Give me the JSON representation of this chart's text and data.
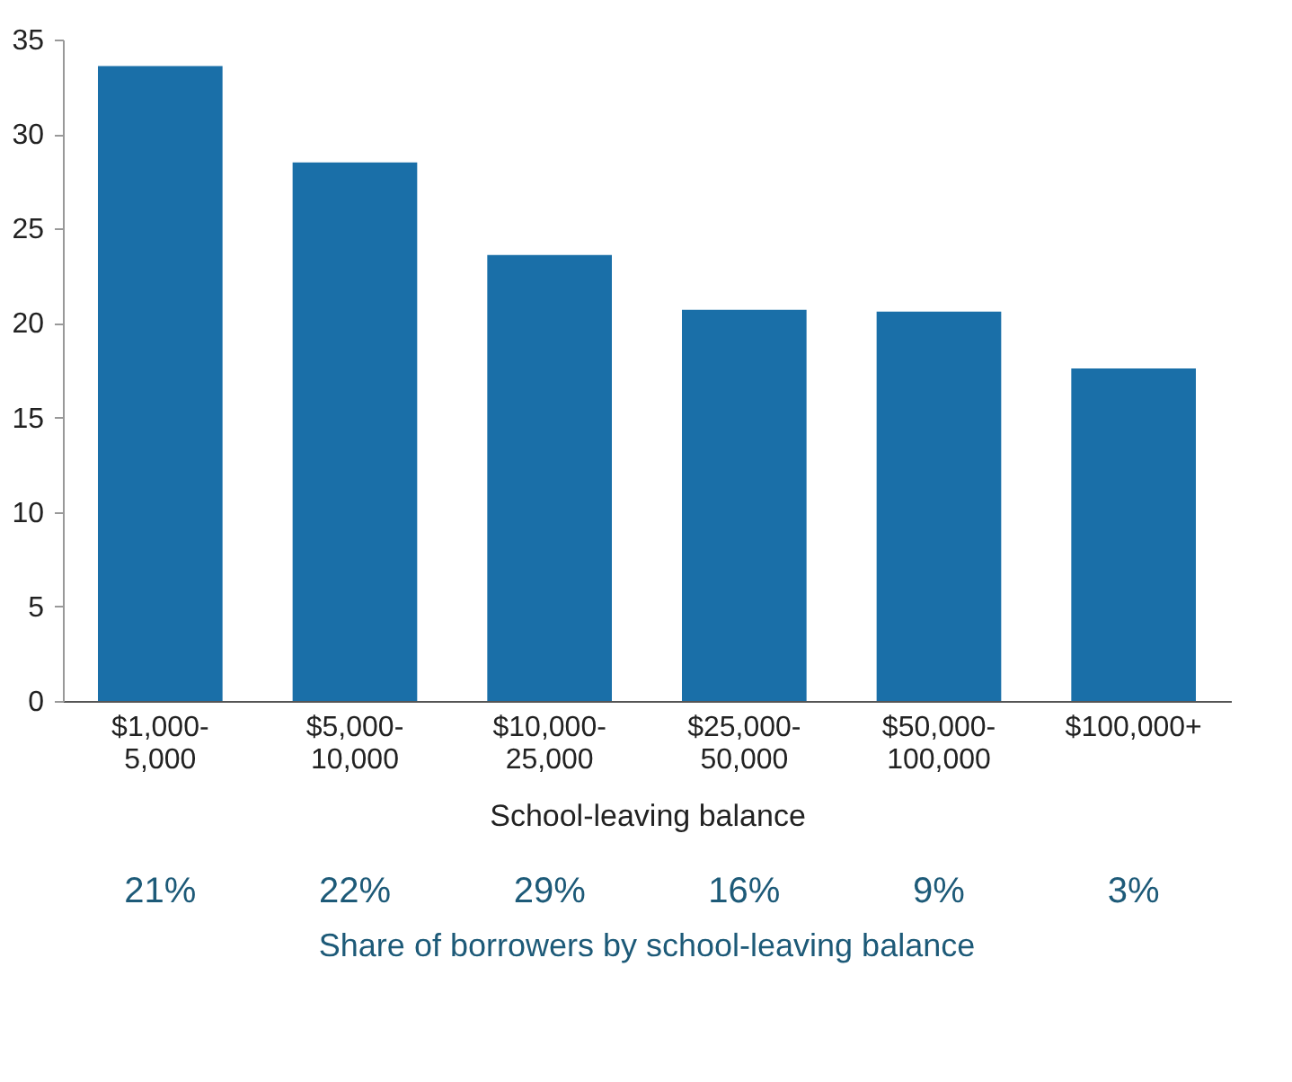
{
  "chart_data": {
    "type": "bar",
    "xlabel": "School-leaving balance",
    "categories": [
      "$1,000-5,000",
      "$5,000-10,000",
      "$10,000-25,000",
      "$25,000-50,000",
      "$50,000-100,000",
      "$100,000+"
    ],
    "values": [
      33.6,
      28.5,
      23.6,
      20.7,
      20.6,
      17.6
    ],
    "color": "#1a6fa8",
    "ylim": [
      0,
      35
    ],
    "yticks": [
      0,
      5,
      10,
      15,
      20,
      25,
      30,
      35
    ],
    "grid": false,
    "annotations": [
      "21%",
      "22%",
      "29%",
      "16%",
      "9%",
      "3%",
      "Share of borrowers by school-leaving balance"
    ]
  }
}
